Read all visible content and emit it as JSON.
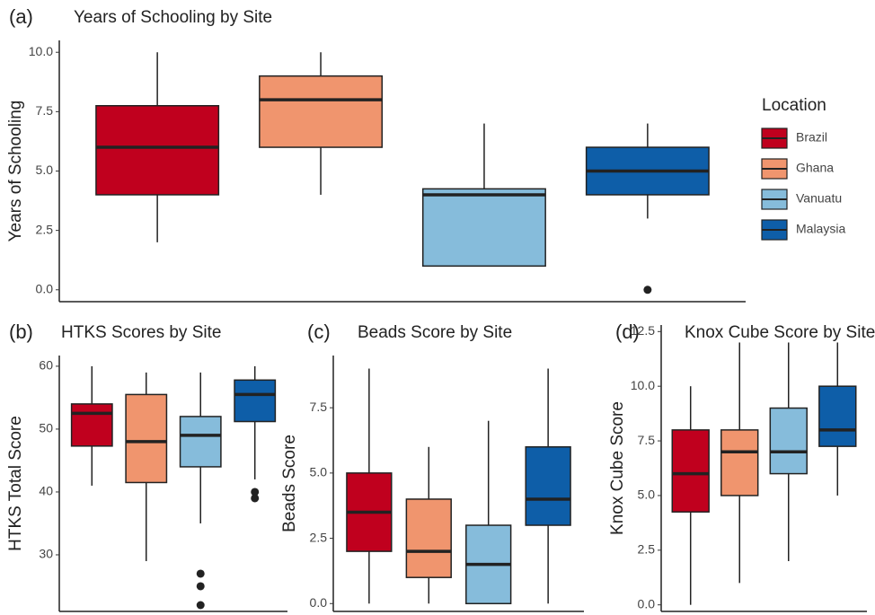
{
  "chart_data": [
    {
      "type": "box",
      "label": "(a)",
      "title": "Years of Schooling by Site",
      "y_label": "Years of Schooling",
      "ylim": [
        -0.5,
        10.5
      ],
      "yticks": [
        {
          "value": 0,
          "label": "0.0"
        },
        {
          "value": 2.5,
          "label": "2.5"
        },
        {
          "value": 5,
          "label": "5.0"
        },
        {
          "value": 7.5,
          "label": "7.5"
        },
        {
          "value": 10,
          "label": "10.0"
        }
      ],
      "legend": {
        "title": "Location",
        "position": "right"
      },
      "boxes": [
        {
          "name": "Brazil",
          "color": "#c0001e",
          "min": 2,
          "q1": 4,
          "median": 6,
          "q3": 7.75,
          "max": 10,
          "outliers": []
        },
        {
          "name": "Ghana",
          "color": "#f0956e",
          "min": 4,
          "q1": 6,
          "median": 8,
          "q3": 9,
          "max": 10,
          "outliers": []
        },
        {
          "name": "Vanuatu",
          "color": "#86bcdb",
          "min": 1,
          "q1": 1,
          "median": 4,
          "q3": 4.25,
          "max": 7,
          "outliers": []
        },
        {
          "name": "Malaysia",
          "color": "#0e5ea8",
          "min": 3,
          "q1": 4,
          "median": 5,
          "q3": 6,
          "max": 7,
          "outliers": [
            0
          ]
        }
      ]
    },
    {
      "type": "box",
      "label": "(b)",
      "title": "HTKS Scores by Site",
      "y_label": "HTKS Total Score",
      "ylim": [
        21,
        61.7
      ],
      "yticks": [
        30,
        40,
        50,
        60
      ],
      "boxes": [
        {
          "color": "#c0001e",
          "min": 41,
          "q1": 47.3,
          "median": 52.5,
          "q3": 54,
          "max": 60,
          "outliers": []
        },
        {
          "color": "#f0956e",
          "min": 29,
          "q1": 41.5,
          "median": 48,
          "q3": 55.5,
          "max": 59,
          "outliers": []
        },
        {
          "color": "#86bcdb",
          "min": 35,
          "q1": 44,
          "median": 49,
          "q3": 52,
          "max": 59,
          "outliers": [
            27,
            25,
            22
          ]
        },
        {
          "color": "#0e5ea8",
          "min": 42,
          "q1": 51.2,
          "median": 55.5,
          "q3": 57.8,
          "max": 60,
          "outliers": [
            40,
            39
          ]
        }
      ]
    },
    {
      "type": "box",
      "label": "(c)",
      "title": "Beads Score by Site",
      "y_label": "Beads Score",
      "ylim": [
        -0.3,
        9.5
      ],
      "yticks": [
        {
          "value": 0,
          "label": "0.0"
        },
        {
          "value": 2.5,
          "label": "2.5"
        },
        {
          "value": 5,
          "label": "5.0"
        },
        {
          "value": 7.5,
          "label": "7.5"
        }
      ],
      "boxes": [
        {
          "color": "#c0001e",
          "min": 0,
          "q1": 2,
          "median": 3.5,
          "q3": 5,
          "max": 9,
          "outliers": []
        },
        {
          "color": "#f0956e",
          "min": 0,
          "q1": 1,
          "median": 2,
          "q3": 4,
          "max": 6,
          "outliers": []
        },
        {
          "color": "#86bcdb",
          "min": 0,
          "q1": 0,
          "median": 1.5,
          "q3": 3,
          "max": 7,
          "outliers": []
        },
        {
          "color": "#0e5ea8",
          "min": 0,
          "q1": 3,
          "median": 4,
          "q3": 6,
          "max": 9,
          "outliers": []
        }
      ]
    },
    {
      "type": "box",
      "label": "(d)",
      "title": "Knox Cube Score by Site",
      "y_label": "Knox Cube Score",
      "ylim": [
        -0.3,
        12.8
      ],
      "yticks": [
        {
          "value": 0,
          "label": "0.0"
        },
        {
          "value": 2.5,
          "label": "2.5"
        },
        {
          "value": 5,
          "label": "5.0"
        },
        {
          "value": 7.5,
          "label": "7.5"
        },
        {
          "value": 10,
          "label": "10.0"
        },
        {
          "value": 12.5,
          "label": "12.5"
        }
      ],
      "boxes": [
        {
          "color": "#c0001e",
          "min": 0,
          "q1": 4.25,
          "median": 6,
          "q3": 8,
          "max": 10,
          "outliers": []
        },
        {
          "color": "#f0956e",
          "min": 1,
          "q1": 5,
          "median": 7,
          "q3": 8,
          "max": 12,
          "outliers": []
        },
        {
          "color": "#86bcdb",
          "min": 2,
          "q1": 6,
          "median": 7,
          "q3": 9,
          "max": 12,
          "outliers": []
        },
        {
          "color": "#0e5ea8",
          "min": 5,
          "q1": 7.25,
          "median": 8,
          "q3": 10,
          "max": 12,
          "outliers": []
        }
      ]
    }
  ]
}
